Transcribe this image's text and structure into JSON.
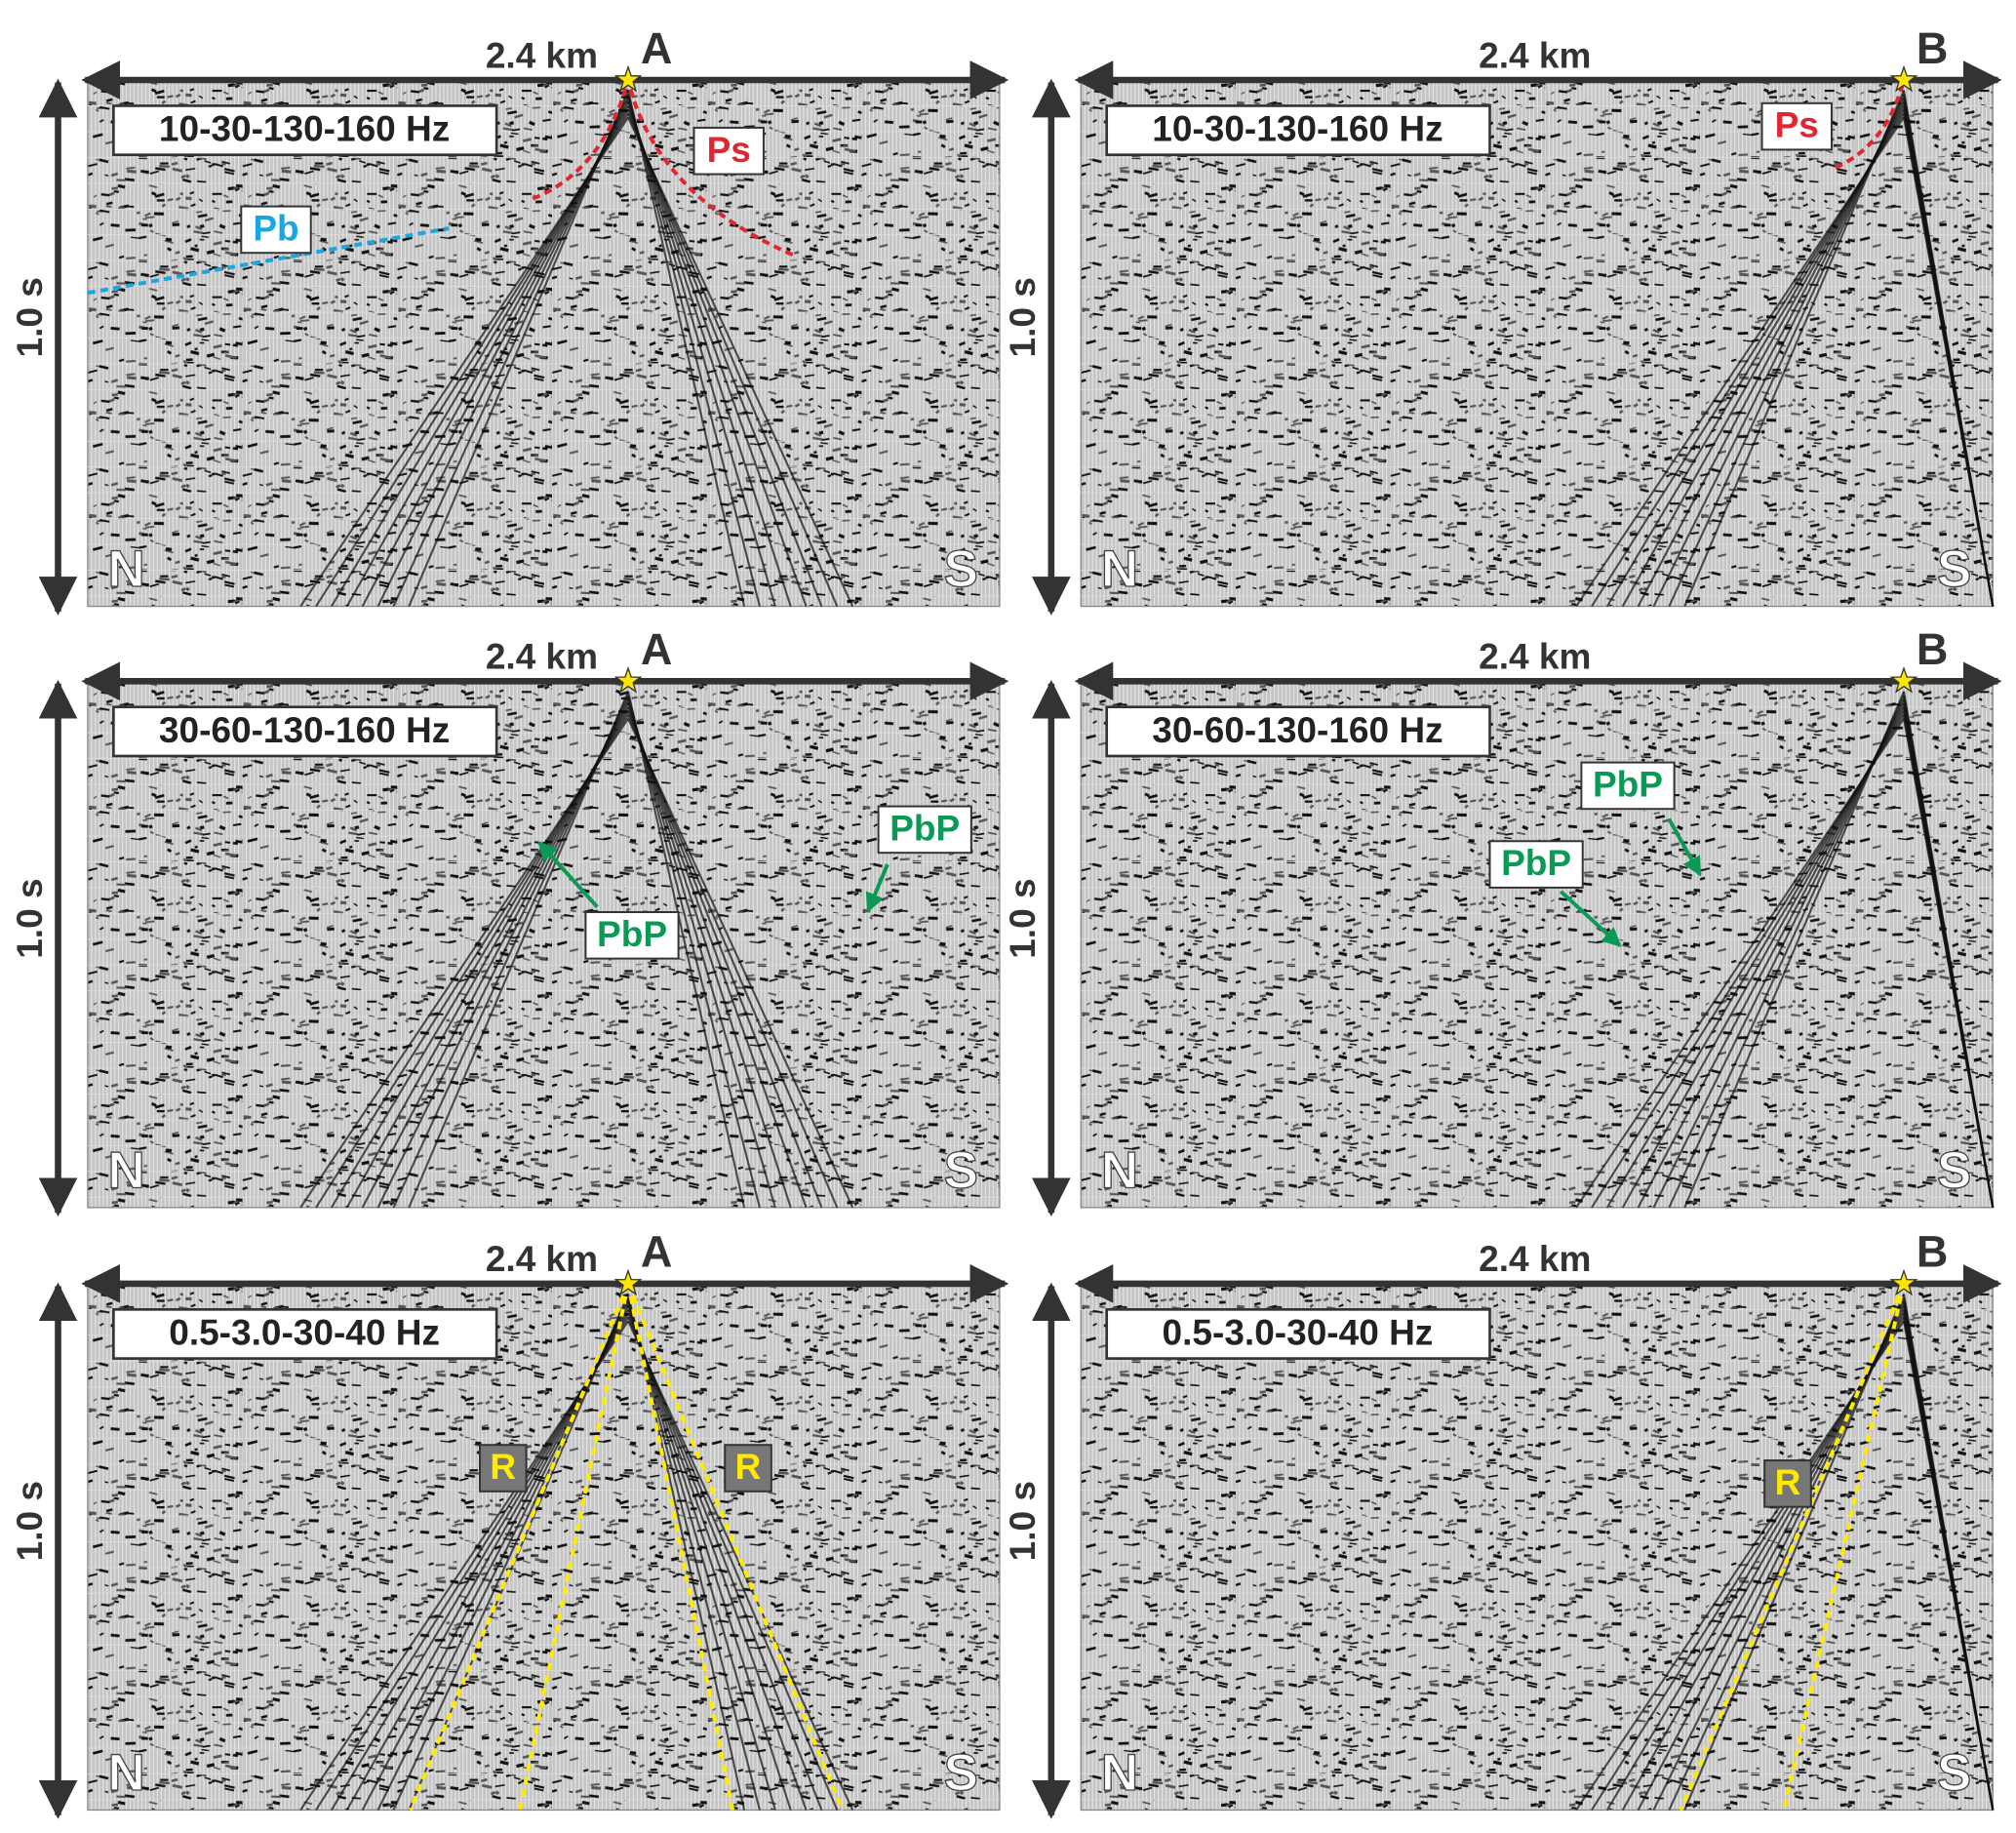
{
  "panels": [
    {
      "distance": "2.4 km",
      "time": "1.0 s",
      "shot": "A",
      "filter": "10-30-130-160 Hz",
      "left": "N",
      "right": "S",
      "phases": [
        "Pb",
        "Ps"
      ]
    },
    {
      "distance": "2.4 km",
      "time": "1.0 s",
      "shot": "B",
      "filter": "10-30-130-160 Hz",
      "left": "N",
      "right": "S",
      "phases": [
        "Ps"
      ]
    },
    {
      "distance": "2.4 km",
      "time": "1.0 s",
      "shot": "A",
      "filter": "30-60-130-160 Hz",
      "left": "N",
      "right": "S",
      "phases": [
        "PbP",
        "PbP"
      ]
    },
    {
      "distance": "2.4 km",
      "time": "1.0 s",
      "shot": "B",
      "filter": "30-60-130-160 Hz",
      "left": "N",
      "right": "S",
      "phases": [
        "PbP",
        "PbP"
      ]
    },
    {
      "distance": "2.4 km",
      "time": "1.0 s",
      "shot": "A",
      "filter": "0.5-3.0-30-40 Hz",
      "left": "N",
      "right": "S",
      "phases": [
        "R",
        "R"
      ]
    },
    {
      "distance": "2.4 km",
      "time": "1.0 s",
      "shot": "B",
      "filter": "0.5-3.0-30-40 Hz",
      "left": "N",
      "right": "S",
      "phases": [
        "R"
      ]
    }
  ]
}
